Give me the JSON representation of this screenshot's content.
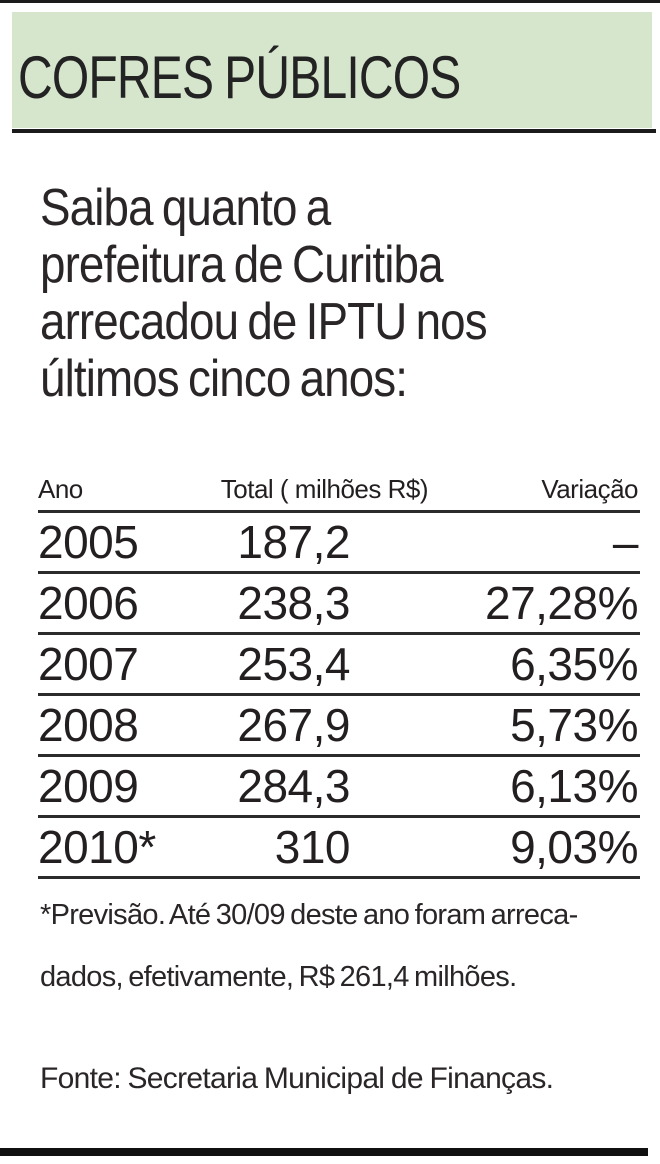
{
  "header": {
    "title": "COFRES PÚBLICOS"
  },
  "intro": {
    "lines": [
      "Saiba quanto a",
      "prefeitura de Curitiba",
      "arrecadou de IPTU nos",
      "últimos cinco anos:"
    ]
  },
  "table": {
    "columns": [
      "Ano",
      "Total ( milhões R$)",
      "Variação"
    ],
    "rows": [
      [
        "2005",
        "187,2",
        "–"
      ],
      [
        "2006",
        "238,3",
        "27,28%"
      ],
      [
        "2007",
        "253,4",
        "6,35%"
      ],
      [
        "2008",
        "267,9",
        "5,73%"
      ],
      [
        "2009",
        "284,3",
        "6,13%"
      ],
      [
        "2010*",
        "310",
        "9,03%"
      ]
    ]
  },
  "footnote": {
    "lines": [
      "*Previsão. Até 30/09 deste ano foram arreca-",
      "dados, efetivamente, R$ 261,4 milhões."
    ]
  },
  "source": {
    "text": "Fonte: Secretaria Municipal de Finanças."
  },
  "colors": {
    "band_green": "#d6e6cd",
    "text": "#231f20",
    "rule": "#1b1b1b"
  },
  "chart_data": {
    "type": "table",
    "title": "COFRES PÚBLICOS",
    "subtitle": "Saiba quanto a prefeitura de Curitiba arrecadou de IPTU nos últimos cinco anos:",
    "columns": [
      "Ano",
      "Total ( milhões R$)",
      "Variação"
    ],
    "years": [
      "2005",
      "2006",
      "2007",
      "2008",
      "2009",
      "2010*"
    ],
    "total_milhoes_rs": [
      187.2,
      238.3,
      253.4,
      267.9,
      284.3,
      310
    ],
    "variacao_pct": [
      null,
      27.28,
      6.35,
      5.73,
      6.13,
      9.03
    ],
    "footnote": "*Previsão. Até 30/09 deste ano foram arrecadados, efetivamente, R$ 261,4 milhões.",
    "source": "Fonte: Secretaria Municipal de Finanças."
  }
}
